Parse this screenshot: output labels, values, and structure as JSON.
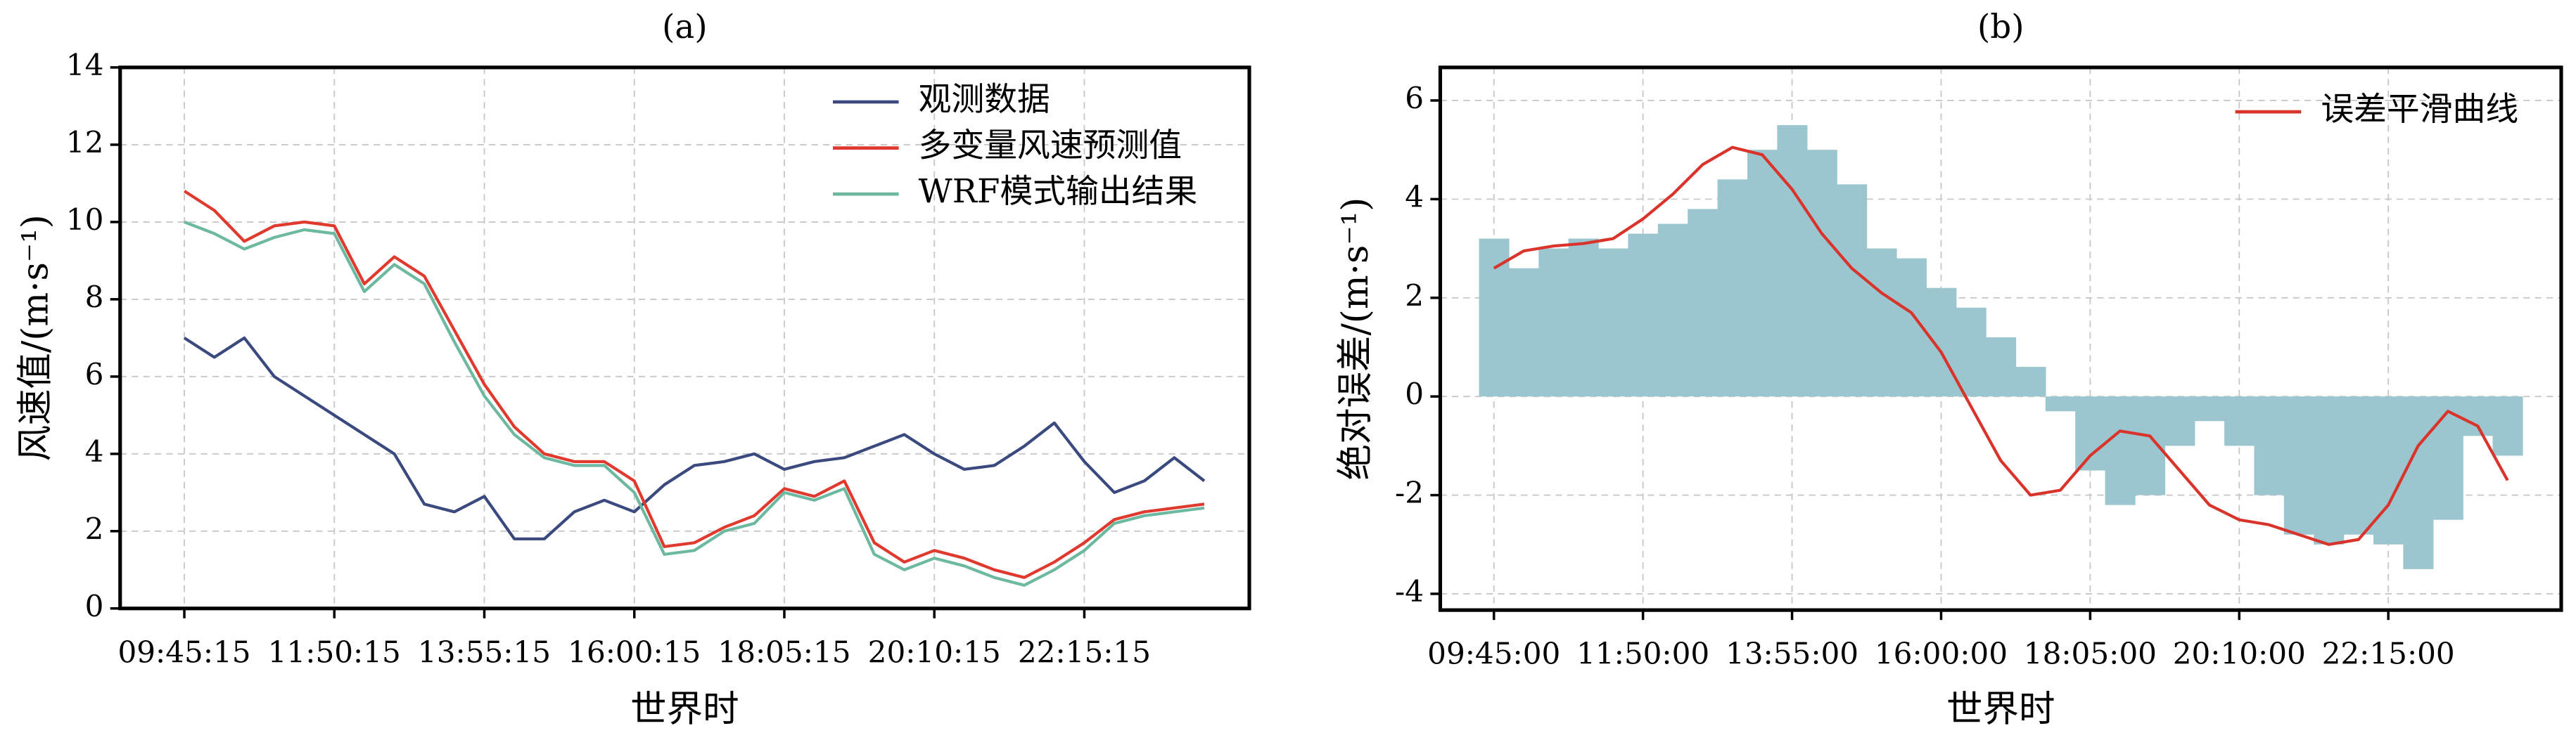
{
  "chart_data": [
    {
      "type": "line",
      "title": "(a)",
      "x_label": "世界时",
      "y_label": "风速值/(m·s⁻¹)",
      "categories": [
        "09:45:15",
        null,
        null,
        null,
        null,
        "11:50:15",
        null,
        null,
        null,
        null,
        "13:55:15",
        null,
        null,
        null,
        null,
        "16:00:15",
        null,
        null,
        null,
        null,
        "18:05:15",
        null,
        null,
        null,
        null,
        "20:10:15",
        null,
        null,
        null,
        null,
        "22:15:15",
        null,
        null,
        null,
        null
      ],
      "series": [
        {
          "name": "观测数据",
          "color": "#3b4a7e",
          "values": [
            7,
            6.5,
            7,
            6,
            5.5,
            5,
            4.5,
            4,
            2.7,
            2.5,
            2.9,
            1.8,
            1.8,
            2.5,
            2.8,
            2.5,
            3.2,
            3.7,
            3.8,
            4.0,
            3.6,
            3.8,
            3.9,
            4.2,
            4.5,
            4.0,
            3.6,
            3.7,
            4.2,
            4.8,
            3.8,
            3.0,
            3.3,
            3.9,
            3.3
          ]
        },
        {
          "name": "多变量风速预测值",
          "color": "#e03a2f",
          "values": [
            10.8,
            10.3,
            9.5,
            9.9,
            10.0,
            9.9,
            8.4,
            9.1,
            8.6,
            7.2,
            5.8,
            4.7,
            4.0,
            3.8,
            3.8,
            3.3,
            1.6,
            1.7,
            2.1,
            2.4,
            3.1,
            2.9,
            3.3,
            1.7,
            1.2,
            1.5,
            1.3,
            1.0,
            0.8,
            1.2,
            1.7,
            2.3,
            2.5,
            2.6,
            2.7
          ]
        },
        {
          "name": "WRF模式输出结果",
          "color": "#6cb8a0",
          "values": [
            10.0,
            9.7,
            9.3,
            9.6,
            9.8,
            9.7,
            8.2,
            8.9,
            8.4,
            6.9,
            5.5,
            4.5,
            3.9,
            3.7,
            3.7,
            3.0,
            1.4,
            1.5,
            2.0,
            2.2,
            3.0,
            2.8,
            3.1,
            1.4,
            1.0,
            1.3,
            1.1,
            0.8,
            0.6,
            1.0,
            1.5,
            2.2,
            2.4,
            2.5,
            2.6
          ]
        }
      ],
      "ylim": [
        0,
        14
      ],
      "yticks": [
        0,
        2,
        4,
        6,
        8,
        10,
        12,
        14
      ],
      "grid": true,
      "legend": "upper right"
    },
    {
      "type": "bar",
      "title": "(b)",
      "x_label": "世界时",
      "y_label": "绝对误差/(m·s⁻¹)",
      "categories": [
        "09:45:00",
        null,
        null,
        null,
        null,
        "11:50:00",
        null,
        null,
        null,
        null,
        "13:55:00",
        null,
        null,
        null,
        null,
        "16:00:00",
        null,
        null,
        null,
        null,
        "18:05:00",
        null,
        null,
        null,
        null,
        "20:10:00",
        null,
        null,
        null,
        null,
        "22:15:00",
        null,
        null,
        null,
        null
      ],
      "series": [
        {
          "type": "bar",
          "color": "#9cc6cf",
          "values": [
            3.2,
            2.6,
            3.0,
            3.2,
            3.0,
            3.3,
            3.5,
            3.8,
            4.4,
            5.0,
            5.5,
            5.0,
            4.3,
            3.0,
            2.8,
            2.2,
            1.8,
            1.2,
            0.6,
            -0.3,
            -1.5,
            -2.2,
            -2.0,
            -1.0,
            -0.5,
            -1.0,
            -2.0,
            -2.8,
            -3.0,
            -2.8,
            -3.0,
            -3.5,
            -2.5,
            -0.8,
            -1.2
          ]
        },
        {
          "type": "line",
          "name": "误差平滑曲线",
          "color": "#d9342b",
          "values": [
            2.6,
            2.95,
            3.05,
            3.1,
            3.2,
            3.6,
            4.1,
            4.7,
            5.05,
            4.9,
            4.2,
            3.3,
            2.6,
            2.1,
            1.7,
            0.9,
            -0.2,
            -1.3,
            -2.0,
            -1.9,
            -1.2,
            -0.7,
            -0.8,
            -1.5,
            -2.2,
            -2.5,
            -2.6,
            -2.8,
            -3.0,
            -2.9,
            -2.2,
            -1.0,
            -0.3,
            -0.6,
            -1.7
          ]
        }
      ],
      "ylim": [
        -4.33,
        6.67
      ],
      "yticks": [
        -4,
        -2,
        0,
        2,
        4,
        6
      ],
      "grid": true,
      "legend": "upper right"
    }
  ]
}
